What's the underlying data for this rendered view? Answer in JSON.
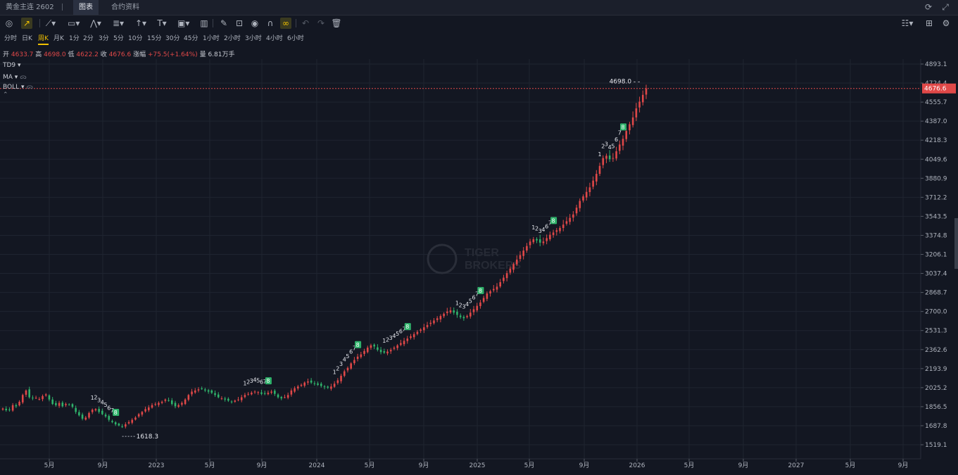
{
  "window": {
    "tabs": [
      {
        "label": "黄金主连 2602"
      },
      {
        "label": "图表"
      },
      {
        "label": "合约资料"
      }
    ],
    "active_tab": 1
  },
  "toolbar": {
    "icons": [
      "indicator-icon",
      "chart-style-icon",
      "line-tool-icon",
      "rect-tool-icon",
      "pattern-tool-icon",
      "fib-tool-icon",
      "arrow-tool-icon",
      "text-tool-icon",
      "measure-tool-icon",
      "bars-tool-icon",
      "pencil-icon",
      "lock-icon",
      "eye-icon",
      "magnet-icon",
      "link-icon",
      "undo-icon",
      "redo-icon",
      "trash-icon"
    ],
    "right_icons": [
      "layout-icon",
      "grid-icon",
      "settings-icon"
    ]
  },
  "periods": [
    "分时",
    "日K",
    "周K",
    "月K",
    "1分",
    "2分",
    "3分",
    "5分",
    "10分",
    "15分",
    "30分",
    "45分",
    "1小时",
    "2小时",
    "3小时",
    "4小时",
    "6小时"
  ],
  "active_period": 2,
  "ohlc": {
    "open_label": "开",
    "open": "4633.7",
    "high_label": "高",
    "high": "4698.0",
    "low_label": "低",
    "low": "4622.2",
    "close_label": "收",
    "close": "4676.6",
    "change_label": "涨幅",
    "change": "+75.5(+1.64%)",
    "volume_label": "量",
    "volume": "6.81万手"
  },
  "indicators": [
    {
      "label": "TD9"
    },
    {
      "label": "MA"
    },
    {
      "label": "BOLL"
    }
  ],
  "watermark": {
    "line1": "TIGER",
    "line2": "BROKERS"
  },
  "chart_data": {
    "type": "candlestick",
    "yaxis_ticks": [
      "4893.1",
      "4724.4",
      "4555.7",
      "4387.0",
      "4218.3",
      "4049.6",
      "3880.9",
      "3712.2",
      "3543.5",
      "3374.8",
      "3206.1",
      "3037.4",
      "2868.7",
      "2700.0",
      "2531.3",
      "2362.6",
      "2193.9",
      "2025.2",
      "1856.5",
      "1687.8",
      "1519.1"
    ],
    "ylim": [
      1519.1,
      4893.1
    ],
    "xaxis_ticks": [
      "5月",
      "9月",
      "2023",
      "5月",
      "9月",
      "2024",
      "5月",
      "9月",
      "2025",
      "5月",
      "9月",
      "2026",
      "5月",
      "9月",
      "2027",
      "5月",
      "9月"
    ],
    "last_price": "4676.6",
    "high_label": "4698.0",
    "low_label": "1618.3",
    "up_color": "#e04848",
    "down_color": "#2fb36b",
    "series_close": [
      1840,
      1825,
      1830,
      1870,
      1860,
      1900,
      1960,
      2000,
      1940,
      1930,
      1935,
      1925,
      1950,
      1965,
      1920,
      1880,
      1870,
      1890,
      1860,
      1880,
      1875,
      1855,
      1810,
      1780,
      1750,
      1760,
      1800,
      1830,
      1835,
      1810,
      1790,
      1770,
      1740,
      1720,
      1700,
      1690,
      1680,
      1700,
      1720,
      1740,
      1760,
      1790,
      1810,
      1835,
      1850,
      1870,
      1880,
      1890,
      1900,
      1920,
      1910,
      1880,
      1860,
      1870,
      1890,
      1920,
      1960,
      1990,
      2000,
      2010,
      2015,
      2000,
      1990,
      1980,
      1960,
      1940,
      1930,
      1920,
      1910,
      1900,
      1910,
      1920,
      1940,
      1960,
      1970,
      1980,
      1990,
      1985,
      1970,
      1975,
      1980,
      1990,
      1970,
      1940,
      1930,
      1940,
      1960,
      2000,
      2020,
      2035,
      2050,
      2070,
      2080,
      2070,
      2060,
      2050,
      2040,
      2030,
      2025,
      2035,
      2060,
      2090,
      2130,
      2170,
      2200,
      2240,
      2270,
      2300,
      2320,
      2350,
      2380,
      2400,
      2390,
      2360,
      2340,
      2335,
      2345,
      2360,
      2380,
      2400,
      2420,
      2440,
      2460,
      2480,
      2500,
      2520,
      2540,
      2560,
      2580,
      2600,
      2620,
      2640,
      2660,
      2680,
      2700,
      2710,
      2690,
      2670,
      2650,
      2640,
      2660,
      2690,
      2720,
      2750,
      2780,
      2820,
      2860,
      2880,
      2900,
      2920,
      2960,
      3000,
      3040,
      3080,
      3120,
      3160,
      3200,
      3240,
      3280,
      3320,
      3340,
      3330,
      3310,
      3320,
      3350,
      3380,
      3400,
      3420,
      3440,
      3470,
      3500,
      3530,
      3560,
      3620,
      3680,
      3720,
      3760,
      3800,
      3860,
      3920,
      3990,
      4060,
      4080,
      4050,
      4060,
      4120,
      4180,
      4230,
      4300,
      4360,
      4420,
      4500,
      4560,
      4620,
      4676.6
    ],
    "td_labels": [
      {
        "text": "1",
        "close_index": 27
      },
      {
        "text": "2",
        "close_index": 28
      },
      {
        "text": "3",
        "close_index": 29
      },
      {
        "text": "4",
        "close_index": 30
      },
      {
        "text": "5",
        "close_index": 31
      },
      {
        "text": "6",
        "close_index": 32
      },
      {
        "text": "7",
        "close_index": 33
      },
      {
        "text": "8",
        "close_index": 34
      },
      {
        "text": "1",
        "close_index": 73
      },
      {
        "text": "2",
        "close_index": 74
      },
      {
        "text": "3",
        "close_index": 75
      },
      {
        "text": "4",
        "close_index": 76
      },
      {
        "text": "5",
        "close_index": 77
      },
      {
        "text": "6",
        "close_index": 78
      },
      {
        "text": "7",
        "close_index": 79
      },
      {
        "text": "8",
        "close_index": 80
      },
      {
        "text": "1",
        "close_index": 100
      },
      {
        "text": "2",
        "close_index": 101
      },
      {
        "text": "3",
        "close_index": 102
      },
      {
        "text": "4",
        "close_index": 103
      },
      {
        "text": "5",
        "close_index": 104
      },
      {
        "text": "6",
        "close_index": 105
      },
      {
        "text": "7",
        "close_index": 106
      },
      {
        "text": "8",
        "close_index": 107
      },
      {
        "text": "1",
        "close_index": 115
      },
      {
        "text": "2",
        "close_index": 116
      },
      {
        "text": "3",
        "close_index": 117
      },
      {
        "text": "4",
        "close_index": 118
      },
      {
        "text": "5",
        "close_index": 119
      },
      {
        "text": "6",
        "close_index": 120
      },
      {
        "text": "7",
        "close_index": 121
      },
      {
        "text": "8",
        "close_index": 122
      },
      {
        "text": "1",
        "close_index": 137
      },
      {
        "text": "2",
        "close_index": 138
      },
      {
        "text": "3",
        "close_index": 139
      },
      {
        "text": "4",
        "close_index": 140
      },
      {
        "text": "5",
        "close_index": 141
      },
      {
        "text": "6",
        "close_index": 142
      },
      {
        "text": "7",
        "close_index": 143
      },
      {
        "text": "8",
        "close_index": 144
      },
      {
        "text": "1",
        "close_index": 160
      },
      {
        "text": "2",
        "close_index": 161
      },
      {
        "text": "3",
        "close_index": 162
      },
      {
        "text": "4",
        "close_index": 163
      },
      {
        "text": "6",
        "close_index": 164
      },
      {
        "text": "7",
        "close_index": 165
      },
      {
        "text": "8",
        "close_index": 166
      },
      {
        "text": "1",
        "close_index": 180
      },
      {
        "text": "2",
        "close_index": 181
      },
      {
        "text": "3",
        "close_index": 182
      },
      {
        "text": "4",
        "close_index": 183
      },
      {
        "text": "5",
        "close_index": 184
      },
      {
        "text": "6",
        "close_index": 185
      },
      {
        "text": "7",
        "close_index": 186
      },
      {
        "text": "8",
        "close_index": 187
      }
    ],
    "grid": true
  }
}
